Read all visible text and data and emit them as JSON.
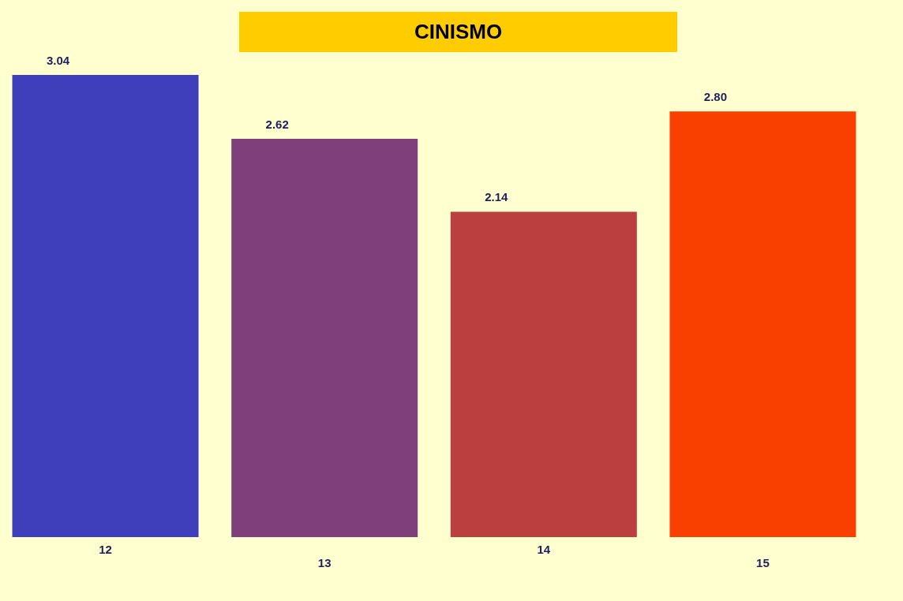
{
  "chart_data": {
    "type": "bar",
    "title": "CINISMO",
    "categories": [
      "12",
      "13",
      "14",
      "15"
    ],
    "values": [
      3.04,
      2.62,
      2.14,
      2.8
    ],
    "colors": [
      "#3f3fbb",
      "#7f3f7b",
      "#bb3f3f",
      "#f94000"
    ],
    "data_labels": true,
    "value_labels": [
      "3.04",
      "2.62",
      "2.14",
      "2.80"
    ],
    "grid": false,
    "legend": false
  }
}
